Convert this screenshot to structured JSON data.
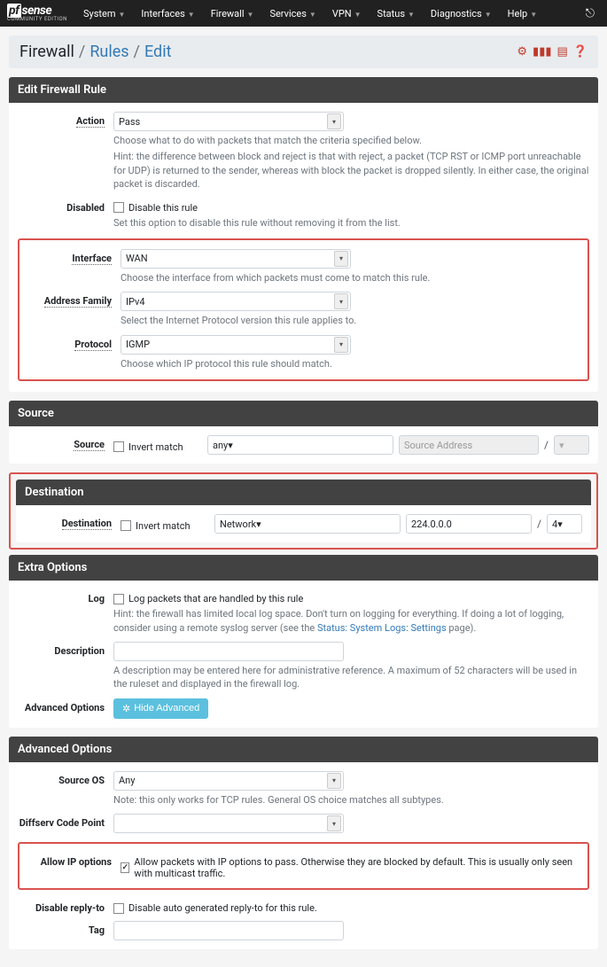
{
  "brand": {
    "name_box": "pf",
    "name_rest": "sense",
    "edition": "COMMUNITY EDITION"
  },
  "nav": [
    {
      "label": "System"
    },
    {
      "label": "Interfaces"
    },
    {
      "label": "Firewall"
    },
    {
      "label": "Services"
    },
    {
      "label": "VPN"
    },
    {
      "label": "Status"
    },
    {
      "label": "Diagnostics"
    },
    {
      "label": "Help"
    }
  ],
  "breadcrumb": {
    "a": "Firewall",
    "b": "Rules",
    "c": "Edit"
  },
  "sections": {
    "editRule": {
      "title": "Edit Firewall Rule",
      "action": {
        "label": "Action",
        "value": "Pass",
        "help1": "Choose what to do with packets that match the criteria specified below.",
        "help2": "Hint: the difference between block and reject is that with reject, a packet (TCP RST or ICMP port unreachable for UDP) is returned to the sender, whereas with block the packet is dropped silently. In either case, the original packet is discarded."
      },
      "disabled": {
        "label": "Disabled",
        "checkbox": "Disable this rule",
        "help": "Set this option to disable this rule without removing it from the list."
      },
      "interface": {
        "label": "Interface",
        "value": "WAN",
        "help": "Choose the interface from which packets must come to match this rule."
      },
      "addrfam": {
        "label": "Address Family",
        "value": "IPv4",
        "help": "Select the Internet Protocol version this rule applies to."
      },
      "protocol": {
        "label": "Protocol",
        "value": "IGMP",
        "help": "Choose which IP protocol this rule should match."
      }
    },
    "source": {
      "title": "Source",
      "label": "Source",
      "invert": "Invert match",
      "type": "any",
      "addr_placeholder": "Source Address",
      "cidr": ""
    },
    "destination": {
      "title": "Destination",
      "label": "Destination",
      "invert": "Invert match",
      "type": "Network",
      "addr": "224.0.0.0",
      "cidr": "4"
    },
    "extra": {
      "title": "Extra Options",
      "log": {
        "label": "Log",
        "checkbox": "Log packets that are handled by this rule",
        "help_pre": "Hint: the firewall has limited local log space. Don't turn on logging for everything. If doing a lot of logging, consider using a remote syslog server (see the ",
        "help_link": "Status: System Logs: Settings",
        "help_post": " page)."
      },
      "description": {
        "label": "Description",
        "help": "A description may be entered here for administrative reference. A maximum of 52 characters will be used in the ruleset and displayed in the firewall log."
      },
      "advBtn": {
        "label": "Advanced Options",
        "btn": "Hide Advanced"
      }
    },
    "advanced": {
      "title": "Advanced Options",
      "sourceOS": {
        "label": "Source OS",
        "value": "Any",
        "help": "Note: this only works for TCP rules. General OS choice matches all subtypes."
      },
      "diffserv": {
        "label": "Diffserv Code Point",
        "value": ""
      },
      "allowIP": {
        "label": "Allow IP options",
        "checkbox": "Allow packets with IP options to pass. Otherwise they are blocked by default. This is usually only seen with multicast traffic.",
        "checked": true
      },
      "disableReply": {
        "label": "Disable reply-to",
        "checkbox": "Disable auto generated reply-to for this rule."
      },
      "tag": {
        "label": "Tag"
      }
    }
  },
  "colors": {
    "highlight": "#d9534f",
    "link": "#337ab7",
    "navbar": "#212121",
    "panelHeader": "#424242",
    "btnInfo": "#5bc0de"
  }
}
